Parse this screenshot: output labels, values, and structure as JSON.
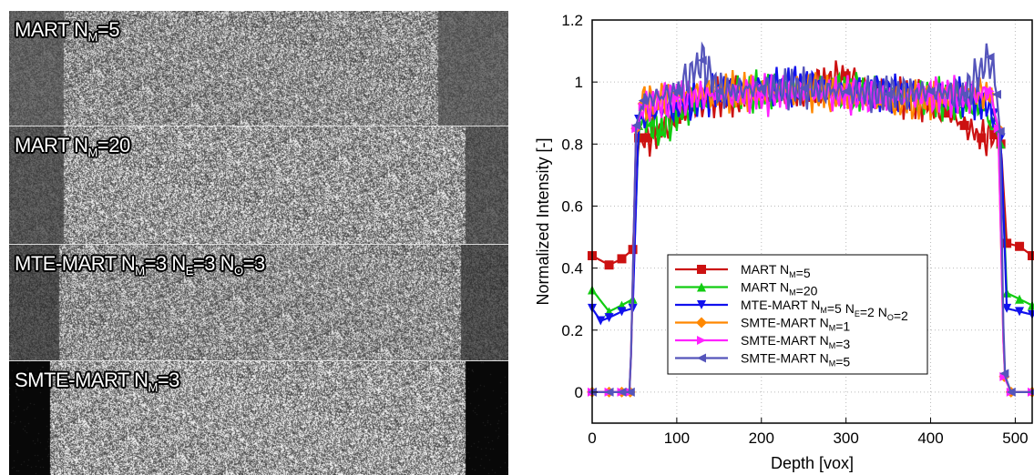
{
  "panels": [
    {
      "label": "MART N",
      "sub": "M",
      "tail": "=5"
    },
    {
      "label": "MART N",
      "sub": "M",
      "tail": "=20"
    },
    {
      "label": "MTE-MART N",
      "sub": "M",
      "tail": "=3 N",
      "sub2": "E",
      "tail2": "=3 N",
      "sub3": "O",
      "tail3": "=3"
    },
    {
      "label": "SMTE-MART N",
      "sub": "M",
      "tail": "=3"
    }
  ],
  "chart_data": {
    "type": "line",
    "xlabel": "Depth [vox]",
    "ylabel": "Normalized Intensity [-]",
    "xlim": [
      0,
      520
    ],
    "ylim": [
      -0.1,
      1.2
    ],
    "xticks": [
      "0",
      "100",
      "200",
      "300",
      "400",
      "500"
    ],
    "yticks": [
      "0",
      "0.2",
      "0.4",
      "0.6",
      "0.8",
      "1",
      "1.2"
    ],
    "grid": true,
    "legend_position": "lower-center",
    "series": [
      {
        "name": "MART N",
        "sub": "M",
        "rest": "=5",
        "color": "#cc1111",
        "marker": "square",
        "points": [
          [
            0,
            0.44
          ],
          [
            20,
            0.41
          ],
          [
            35,
            0.43
          ],
          [
            48,
            0.46
          ],
          [
            55,
            0.82
          ],
          [
            65,
            0.82
          ],
          [
            80,
            0.84
          ],
          [
            100,
            0.88
          ],
          [
            120,
            0.92
          ],
          [
            150,
            0.95
          ],
          [
            200,
            0.96
          ],
          [
            250,
            0.97
          ],
          [
            300,
            1.02
          ],
          [
            350,
            0.96
          ],
          [
            400,
            0.93
          ],
          [
            420,
            0.9
          ],
          [
            440,
            0.86
          ],
          [
            460,
            0.82
          ],
          [
            475,
            0.83
          ],
          [
            483,
            0.8
          ],
          [
            490,
            0.48
          ],
          [
            505,
            0.47
          ],
          [
            520,
            0.44
          ]
        ]
      },
      {
        "name": "MART N",
        "sub": "M",
        "rest": "=20",
        "color": "#11cc11",
        "marker": "triangle-up",
        "points": [
          [
            0,
            0.33
          ],
          [
            20,
            0.26
          ],
          [
            35,
            0.28
          ],
          [
            48,
            0.3
          ],
          [
            55,
            0.86
          ],
          [
            70,
            0.87
          ],
          [
            80,
            0.84
          ],
          [
            100,
            0.9
          ],
          [
            120,
            0.93
          ],
          [
            150,
            0.96
          ],
          [
            200,
            0.97
          ],
          [
            250,
            0.98
          ],
          [
            300,
            0.97
          ],
          [
            350,
            0.96
          ],
          [
            400,
            0.95
          ],
          [
            440,
            0.93
          ],
          [
            460,
            0.92
          ],
          [
            475,
            0.86
          ],
          [
            483,
            0.8
          ],
          [
            490,
            0.32
          ],
          [
            505,
            0.3
          ],
          [
            520,
            0.28
          ]
        ]
      },
      {
        "name": "MTE-MART N",
        "sub": "M",
        "rest": "=5 N",
        "sub2": "E",
        "rest2": "=2 N",
        "sub3": "O",
        "rest3": "=2",
        "color": "#1111ee",
        "marker": "triangle-down",
        "points": [
          [
            0,
            0.27
          ],
          [
            10,
            0.23
          ],
          [
            20,
            0.24
          ],
          [
            35,
            0.26
          ],
          [
            48,
            0.27
          ],
          [
            55,
            0.88
          ],
          [
            70,
            0.9
          ],
          [
            100,
            0.92
          ],
          [
            150,
            0.97
          ],
          [
            200,
            0.98
          ],
          [
            250,
            0.99
          ],
          [
            300,
            0.97
          ],
          [
            350,
            0.96
          ],
          [
            400,
            0.96
          ],
          [
            440,
            0.95
          ],
          [
            460,
            0.94
          ],
          [
            475,
            0.9
          ],
          [
            483,
            0.82
          ],
          [
            490,
            0.27
          ],
          [
            505,
            0.26
          ],
          [
            520,
            0.25
          ]
        ]
      },
      {
        "name": "SMTE-MART N",
        "sub": "M",
        "rest": "=1",
        "color": "#ff8800",
        "marker": "diamond",
        "points": [
          [
            0,
            0.0
          ],
          [
            20,
            0.0
          ],
          [
            35,
            0.0
          ],
          [
            45,
            0.0
          ],
          [
            52,
            0.85
          ],
          [
            60,
            0.93
          ],
          [
            100,
            0.96
          ],
          [
            150,
            0.97
          ],
          [
            200,
            0.97
          ],
          [
            250,
            0.97
          ],
          [
            300,
            0.96
          ],
          [
            340,
            0.94
          ],
          [
            370,
            0.94
          ],
          [
            400,
            0.94
          ],
          [
            440,
            0.97
          ],
          [
            470,
            0.96
          ],
          [
            480,
            0.85
          ],
          [
            487,
            0.05
          ],
          [
            495,
            0.0
          ],
          [
            520,
            0.0
          ]
        ]
      },
      {
        "name": "SMTE-MART N",
        "sub": "M",
        "rest": "=3",
        "color": "#ff22ff",
        "marker": "triangle-right",
        "points": [
          [
            0,
            0.0
          ],
          [
            20,
            0.0
          ],
          [
            35,
            0.0
          ],
          [
            45,
            0.0
          ],
          [
            52,
            0.85
          ],
          [
            60,
            0.92
          ],
          [
            100,
            0.95
          ],
          [
            150,
            0.96
          ],
          [
            200,
            0.96
          ],
          [
            250,
            0.97
          ],
          [
            300,
            0.96
          ],
          [
            350,
            0.95
          ],
          [
            400,
            0.96
          ],
          [
            440,
            0.95
          ],
          [
            470,
            0.97
          ],
          [
            480,
            0.85
          ],
          [
            487,
            0.05
          ],
          [
            495,
            0.0
          ],
          [
            520,
            0.0
          ]
        ]
      },
      {
        "name": "SMTE-MART N",
        "sub": "M",
        "rest": "=5",
        "color": "#5555bb",
        "marker": "triangle-left",
        "points": [
          [
            0,
            0.0
          ],
          [
            20,
            0.0
          ],
          [
            35,
            0.0
          ],
          [
            45,
            0.0
          ],
          [
            52,
            0.86
          ],
          [
            60,
            0.94
          ],
          [
            100,
            0.97
          ],
          [
            130,
            1.07
          ],
          [
            150,
            0.97
          ],
          [
            200,
            0.98
          ],
          [
            250,
            0.98
          ],
          [
            300,
            0.97
          ],
          [
            350,
            0.96
          ],
          [
            400,
            0.97
          ],
          [
            440,
            0.96
          ],
          [
            470,
            1.08
          ],
          [
            478,
            0.96
          ],
          [
            482,
            0.84
          ],
          [
            487,
            0.06
          ],
          [
            495,
            0.0
          ],
          [
            520,
            0.0
          ]
        ]
      }
    ]
  }
}
